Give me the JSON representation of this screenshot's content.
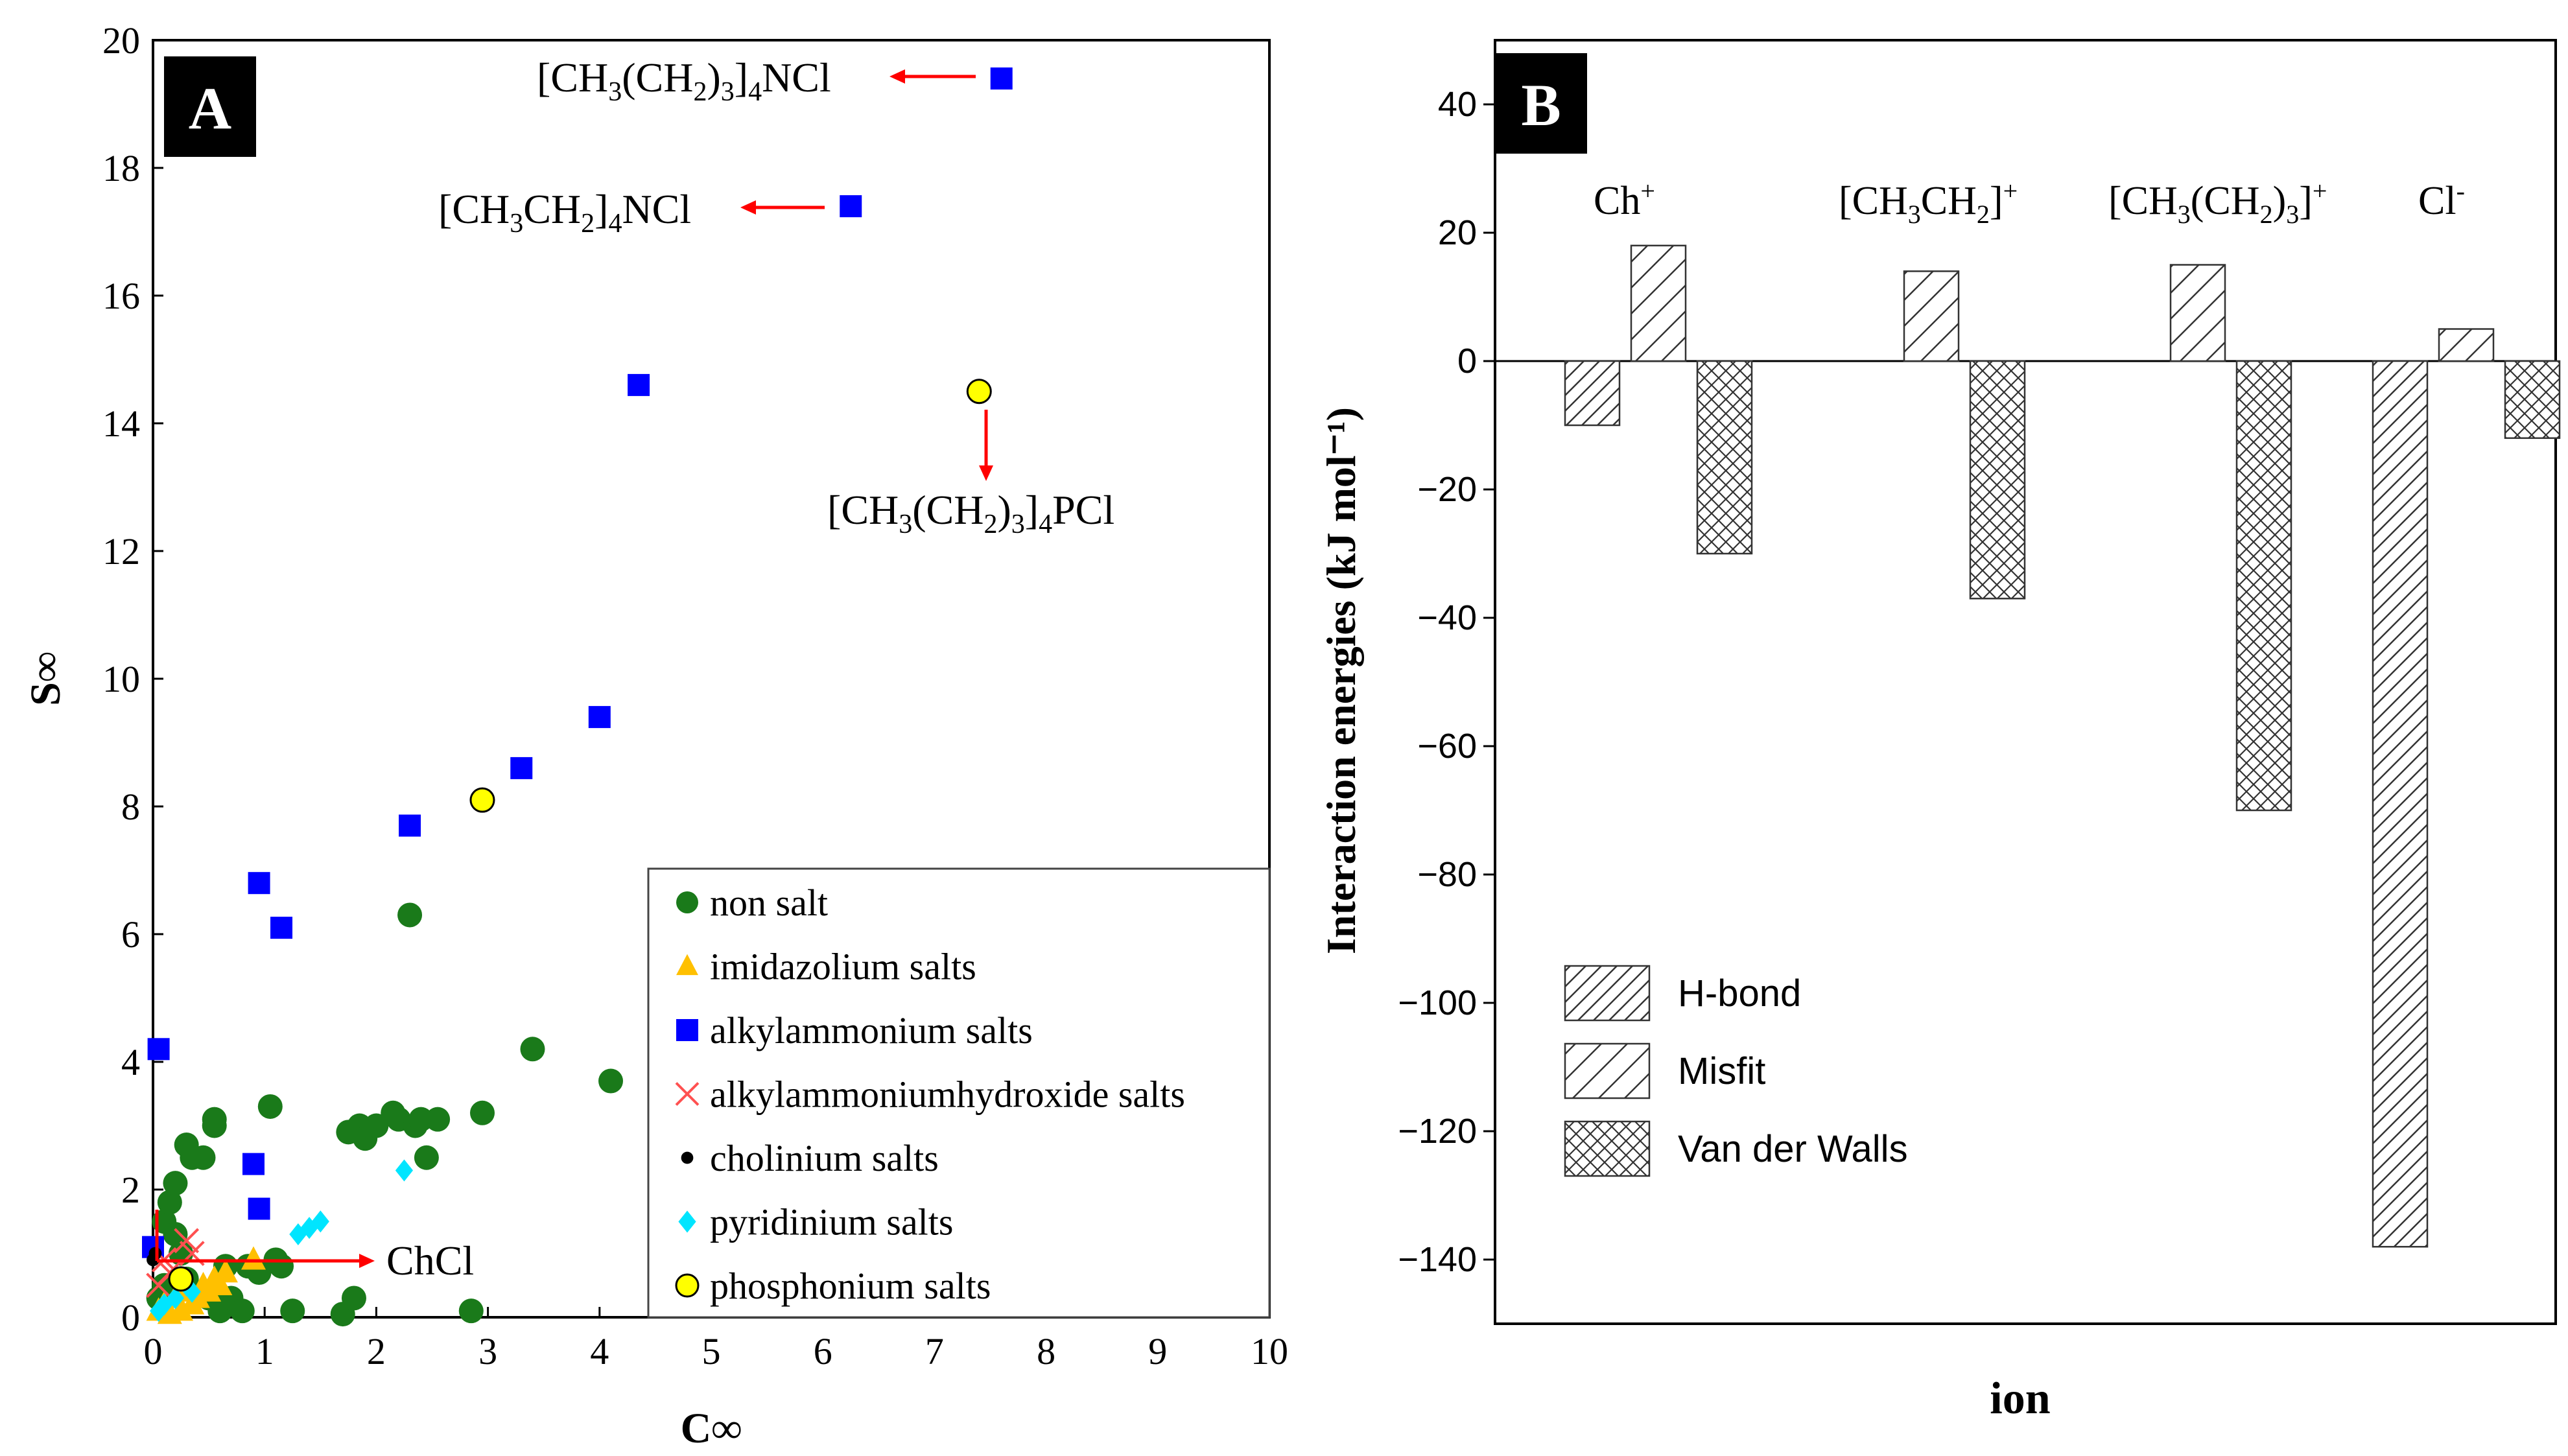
{
  "chart_data": [
    {
      "type": "scatter",
      "panel_label": "A",
      "xlabel": "C∞",
      "ylabel": "S∞",
      "xlim": [
        0,
        10
      ],
      "ylim": [
        0,
        20
      ],
      "xticks": [
        "0",
        "1",
        "2",
        "3",
        "4",
        "5",
        "6",
        "7",
        "8",
        "9",
        "10"
      ],
      "yticks": [
        "0",
        "2",
        "4",
        "6",
        "8",
        "10",
        "12",
        "14",
        "16",
        "18",
        "20"
      ],
      "legend_position": "bottom-right",
      "series": [
        {
          "name": "non salt",
          "marker": "circle",
          "color": "#1a7a1a",
          "points": [
            [
              0.05,
              0.3
            ],
            [
              0.1,
              0.5
            ],
            [
              0.1,
              1.5
            ],
            [
              0.15,
              1.8
            ],
            [
              0.2,
              2.1
            ],
            [
              0.2,
              1.3
            ],
            [
              0.25,
              1.0
            ],
            [
              0.3,
              0.6
            ],
            [
              0.3,
              2.7
            ],
            [
              0.35,
              2.5
            ],
            [
              0.45,
              2.5
            ],
            [
              0.5,
              0.3
            ],
            [
              0.55,
              3.0
            ],
            [
              0.55,
              3.1
            ],
            [
              0.6,
              0.1
            ],
            [
              0.65,
              0.8
            ],
            [
              0.7,
              0.3
            ],
            [
              0.8,
              0.1
            ],
            [
              0.85,
              0.8
            ],
            [
              0.95,
              0.7
            ],
            [
              1.05,
              3.3
            ],
            [
              1.1,
              0.9
            ],
            [
              1.15,
              0.8
            ],
            [
              1.25,
              0.1
            ],
            [
              1.7,
              0.05
            ],
            [
              1.75,
              2.9
            ],
            [
              1.8,
              0.3
            ],
            [
              1.85,
              3.0
            ],
            [
              1.9,
              2.8
            ],
            [
              2.0,
              3.0
            ],
            [
              2.15,
              3.2
            ],
            [
              2.2,
              3.1
            ],
            [
              2.3,
              6.3
            ],
            [
              2.35,
              3.0
            ],
            [
              2.4,
              3.1
            ],
            [
              2.45,
              2.5
            ],
            [
              2.55,
              3.1
            ],
            [
              2.85,
              0.1
            ],
            [
              2.95,
              3.2
            ],
            [
              3.4,
              4.2
            ],
            [
              4.1,
              3.7
            ]
          ]
        },
        {
          "name": "imidazolium salts",
          "marker": "triangle",
          "color": "#ffc000",
          "points": [
            [
              0.05,
              0.1
            ],
            [
              0.1,
              0.2
            ],
            [
              0.15,
              0.05
            ],
            [
              0.2,
              0.3
            ],
            [
              0.25,
              0.1
            ],
            [
              0.3,
              0.4
            ],
            [
              0.35,
              0.2
            ],
            [
              0.4,
              0.3
            ],
            [
              0.45,
              0.5
            ],
            [
              0.5,
              0.4
            ],
            [
              0.55,
              0.6
            ],
            [
              0.6,
              0.5
            ],
            [
              0.65,
              0.7
            ],
            [
              0.9,
              0.9
            ]
          ]
        },
        {
          "name": "alkylammonium salts",
          "marker": "square",
          "color": "#0000ff",
          "points": [
            [
              0.0,
              1.1
            ],
            [
              0.05,
              4.2
            ],
            [
              0.9,
              2.4
            ],
            [
              0.95,
              1.7
            ],
            [
              0.95,
              6.8
            ],
            [
              1.15,
              6.1
            ],
            [
              2.3,
              7.7
            ],
            [
              3.3,
              8.6
            ],
            [
              4.0,
              9.4
            ],
            [
              4.35,
              14.6
            ],
            [
              6.25,
              17.4
            ],
            [
              7.6,
              19.4
            ]
          ]
        },
        {
          "name": "alkylammoniumhydroxide salts",
          "marker": "cross",
          "color": "#ff5050",
          "points": [
            [
              0.05,
              0.5
            ],
            [
              0.1,
              0.9
            ],
            [
              0.15,
              0.7
            ],
            [
              0.3,
              1.2
            ],
            [
              0.35,
              1.0
            ]
          ]
        },
        {
          "name": "cholinium salts",
          "marker": "dot",
          "color": "#000000",
          "points": [
            [
              0.0,
              0.9
            ],
            [
              0.02,
              1.0
            ]
          ]
        },
        {
          "name": "pyridinium salts",
          "marker": "diamond",
          "color": "#00e5ff",
          "points": [
            [
              0.05,
              0.1
            ],
            [
              0.1,
              0.2
            ],
            [
              0.2,
              0.3
            ],
            [
              0.3,
              0.5
            ],
            [
              0.35,
              0.4
            ],
            [
              1.3,
              1.3
            ],
            [
              1.4,
              1.4
            ],
            [
              1.5,
              1.5
            ],
            [
              2.25,
              2.3
            ]
          ]
        },
        {
          "name": "phosphonium salts",
          "marker": "circle-outline",
          "color": "#ffff00",
          "points": [
            [
              0.25,
              0.6
            ],
            [
              2.95,
              8.1
            ],
            [
              7.4,
              14.5
            ]
          ]
        }
      ],
      "annotations": [
        {
          "text_parts": [
            "[CH",
            "3",
            "(CH",
            "2",
            ")",
            "3",
            "]",
            "4",
            "NCl"
          ],
          "points_to": [
            7.6,
            19.4
          ]
        },
        {
          "text_parts": [
            "[CH",
            "3",
            "CH",
            "2",
            "]",
            "4",
            "NCl"
          ],
          "points_to": [
            6.25,
            17.4
          ]
        },
        {
          "text_parts": [
            "[CH",
            "3",
            "(CH",
            "2",
            ")",
            "3",
            "]",
            "4",
            "PCl"
          ],
          "points_to": [
            7.4,
            14.5
          ]
        },
        {
          "text": "ChCl",
          "points_from": [
            0.05,
            1.0
          ]
        }
      ]
    },
    {
      "type": "bar",
      "panel_label": "B",
      "xlabel": "ion",
      "ylabel": "Interaction energies (kJ mol⁻¹)",
      "ylim": [
        -150,
        50
      ],
      "yticks": [
        "40",
        "20",
        "0",
        "−20",
        "−40",
        "−60",
        "−80",
        "−100",
        "−120",
        "−140"
      ],
      "categories": [
        {
          "parts": [
            "Ch",
            "+"
          ],
          "kinds": [
            "n",
            "sup"
          ]
        },
        {
          "parts": [
            "[CH",
            "3",
            "CH",
            "2",
            "]",
            "+"
          ],
          "kinds": [
            "n",
            "sub",
            "n",
            "sub",
            "n",
            "sup"
          ]
        },
        {
          "parts": [
            "[CH",
            "3",
            "(CH",
            "2",
            ")",
            "3",
            "]",
            "+"
          ],
          "kinds": [
            "n",
            "sub",
            "n",
            "sub",
            "n",
            "sub",
            "n",
            "sup"
          ]
        },
        {
          "parts": [
            "Cl",
            "-"
          ],
          "kinds": [
            "n",
            "sup"
          ]
        }
      ],
      "series": [
        {
          "name": "H-bond",
          "pattern": "h-bond",
          "values": [
            -10,
            null,
            null,
            -138
          ]
        },
        {
          "name": "Misfit",
          "pattern": "misfit",
          "values": [
            18,
            14,
            15,
            5
          ]
        },
        {
          "name": "Van der Walls",
          "pattern": "vdw",
          "values": [
            -30,
            -37,
            -70,
            -12
          ]
        }
      ],
      "legend_position": "bottom-left"
    }
  ]
}
